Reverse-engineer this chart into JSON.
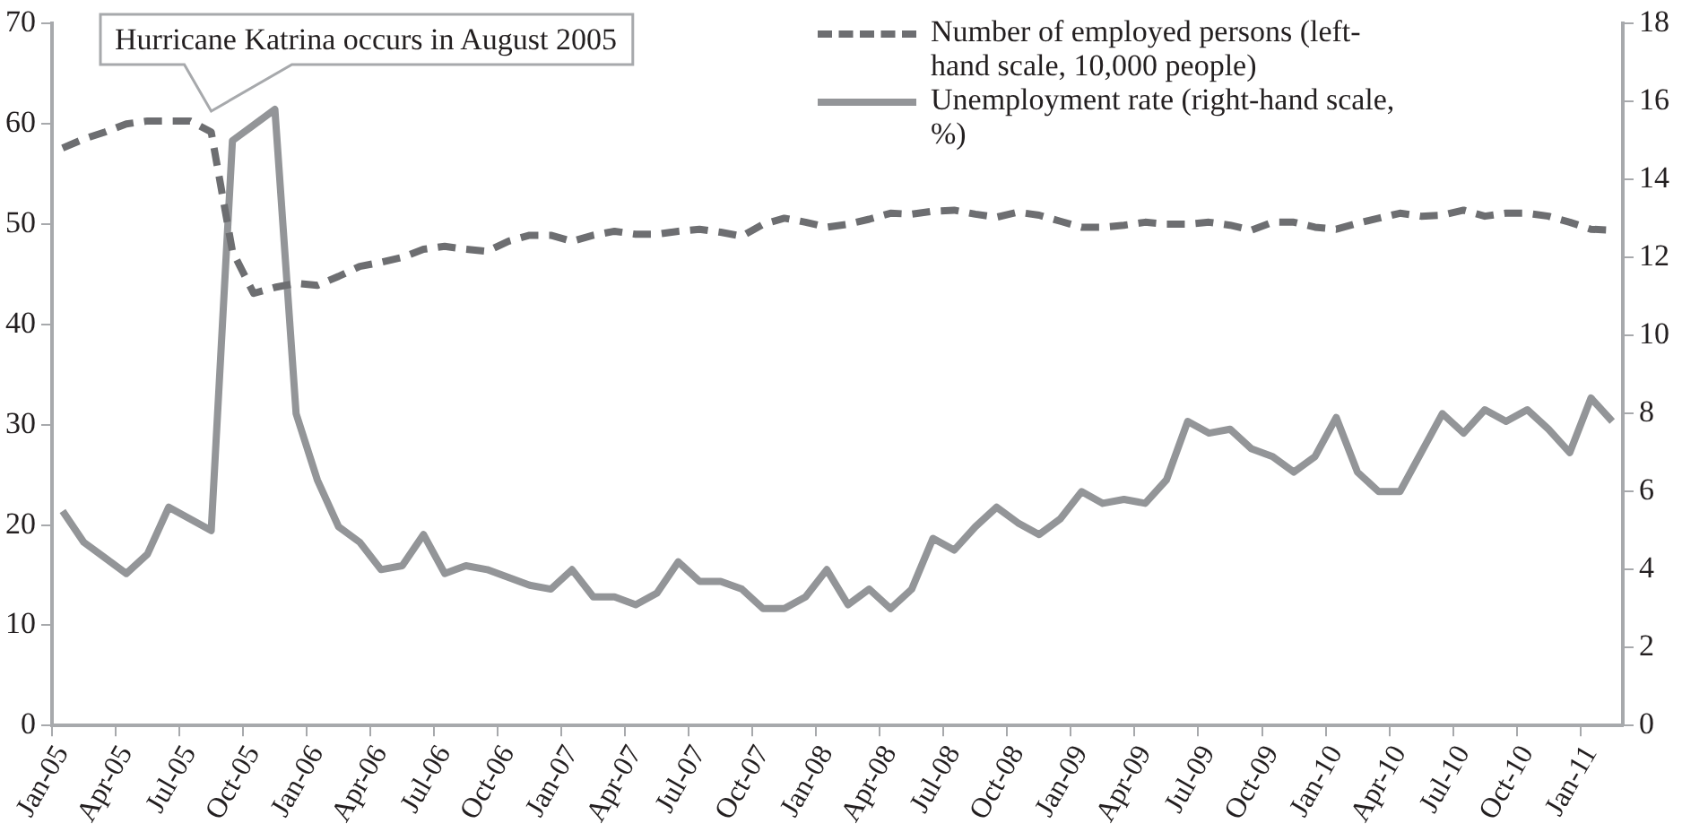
{
  "chart_data": {
    "type": "line",
    "categories": [
      "Jan-05",
      null,
      null,
      "Apr-05",
      null,
      null,
      "Jul-05",
      null,
      null,
      "Oct-05",
      null,
      null,
      "Jan-06",
      null,
      null,
      "Apr-06",
      null,
      null,
      "Jul-06",
      null,
      null,
      "Oct-06",
      null,
      null,
      "Jan-07",
      null,
      null,
      "Apr-07",
      null,
      null,
      "Jul-07",
      null,
      null,
      "Oct-07",
      null,
      null,
      "Jan-08",
      null,
      null,
      "Apr-08",
      null,
      null,
      "Jul-08",
      null,
      null,
      "Oct-08",
      null,
      null,
      "Jan-09",
      null,
      null,
      "Apr-09",
      null,
      null,
      "Jul-09",
      null,
      null,
      "Oct-09",
      null,
      null,
      "Jan-10",
      null,
      null,
      "Apr-10",
      null,
      null,
      "Jul-10",
      null,
      null,
      "Oct-10",
      null,
      null,
      "Jan-11",
      null
    ],
    "series": [
      {
        "name": "Number of employed persons (left-hand scale, 10,000 people)",
        "color": "#6d6e71",
        "line_style": "dashed",
        "values": [
          57.6,
          58.5,
          59.2,
          60.0,
          60.3,
          60.3,
          60.3,
          59.2,
          47.3,
          43.1,
          43.7,
          44.1,
          43.9,
          44.8,
          45.8,
          46.2,
          46.7,
          47.5,
          47.8,
          47.5,
          47.3,
          48.3,
          48.9,
          48.9,
          48.3,
          48.9,
          49.3,
          49.0,
          49.0,
          49.3,
          49.5,
          49.2,
          48.8,
          50.0,
          50.6,
          50.2,
          49.7,
          50.0,
          50.5,
          51.1,
          51.0,
          51.3,
          51.4,
          51.0,
          50.7,
          51.2,
          50.9,
          50.3,
          49.7,
          49.7,
          49.9,
          50.2,
          50.0,
          50.0,
          50.2,
          49.9,
          49.4,
          50.2,
          50.2,
          49.7,
          49.5,
          50.1,
          50.6,
          51.1,
          50.8,
          50.9,
          51.4,
          50.8,
          51.1,
          51.1,
          50.8,
          50.2,
          49.5,
          49.4
        ]
      },
      {
        "name": "Unemployment rate (right-hand scale, %)",
        "color": "#939598",
        "line_style": "solid",
        "axis": "y2",
        "values": [
          5.5,
          4.7,
          4.3,
          3.9,
          4.4,
          5.6,
          5.3,
          5.0,
          15.0,
          15.4,
          15.8,
          8.0,
          6.3,
          5.1,
          4.7,
          4.0,
          4.1,
          4.9,
          3.9,
          4.1,
          4.0,
          3.8,
          3.6,
          3.5,
          4.0,
          3.3,
          3.3,
          3.1,
          3.4,
          4.2,
          3.7,
          3.7,
          3.5,
          3.0,
          3.0,
          3.3,
          4.0,
          3.1,
          3.5,
          3.0,
          3.5,
          4.8,
          4.5,
          5.1,
          5.6,
          5.2,
          4.9,
          5.3,
          6.0,
          5.7,
          5.8,
          5.7,
          6.3,
          7.8,
          7.5,
          7.6,
          7.1,
          6.9,
          6.5,
          6.9,
          7.9,
          6.5,
          6.0,
          6.0,
          7.0,
          8.0,
          7.5,
          8.1,
          7.8,
          8.1,
          7.6,
          7.0,
          8.4,
          7.8
        ]
      }
    ],
    "ylim": [
      0,
      70
    ],
    "yticks": [
      0,
      10,
      20,
      30,
      40,
      50,
      60,
      70
    ],
    "y2lim": [
      0,
      18
    ],
    "y2ticks": [
      0,
      2,
      4,
      6,
      8,
      10,
      12,
      14,
      16,
      18
    ],
    "annotations": [
      "Hurricane Katrina occurs in August 2005"
    ],
    "legend": "top right",
    "grid": false,
    "marker": "none"
  }
}
